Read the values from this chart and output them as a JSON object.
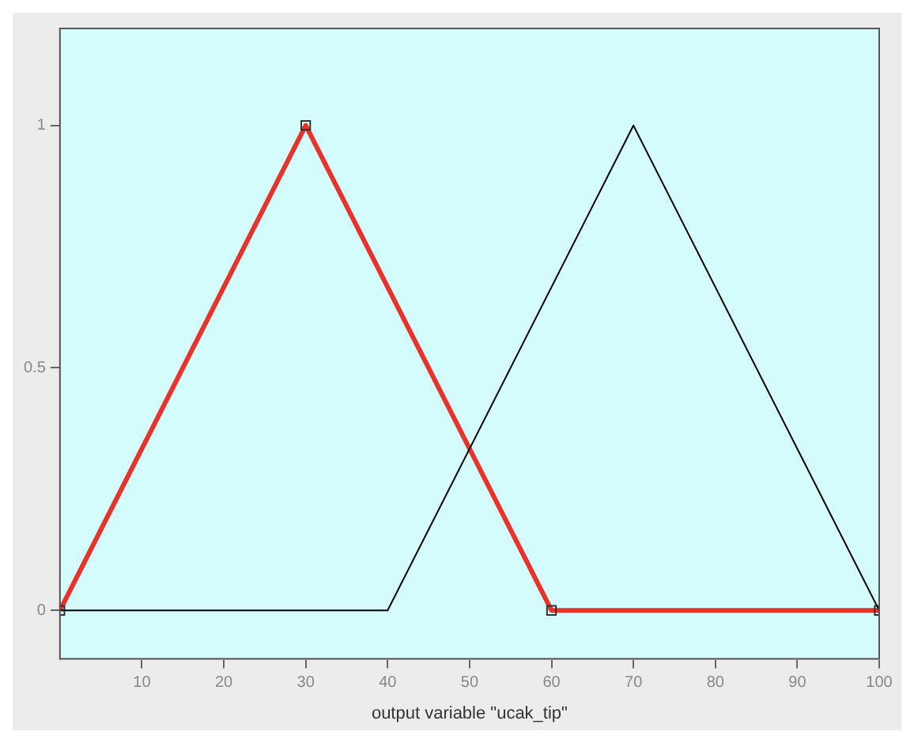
{
  "chart_data": {
    "type": "line",
    "xlabel": "output variable \"ucak_tip\"",
    "xlim": [
      0,
      100
    ],
    "xticks": [
      10,
      20,
      30,
      40,
      50,
      60,
      70,
      80,
      90,
      100
    ],
    "ylim": [
      -0.1,
      1.2
    ],
    "yticks": [
      0,
      0.5,
      1
    ],
    "grid": false,
    "legend": false,
    "series": [
      {
        "color": "#000000",
        "x": [
          0,
          40,
          70,
          100
        ],
        "values": [
          0,
          0,
          1,
          0
        ]
      },
      {
        "color": "#e8322b",
        "x": [
          0,
          30,
          60,
          100
        ],
        "values": [
          0,
          1,
          0,
          0
        ],
        "marker": "square"
      }
    ]
  }
}
